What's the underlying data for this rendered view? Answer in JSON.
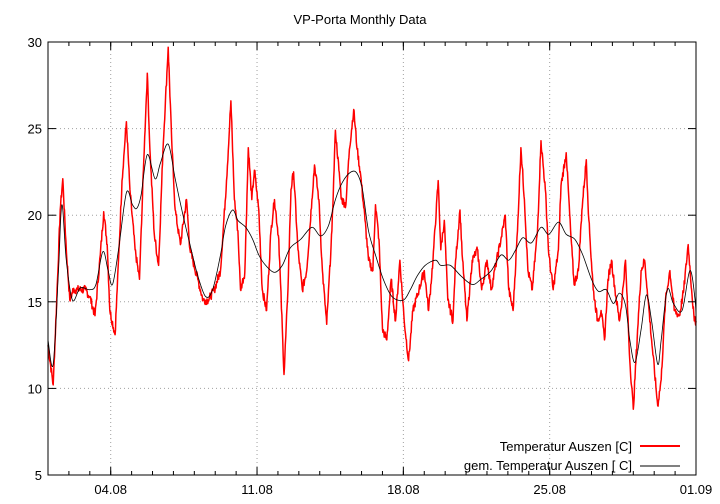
{
  "chart_data": {
    "type": "line",
    "title": "VP-Porta Monthly Data",
    "xlabel": "",
    "ylabel": "",
    "x_format": "dd.mm hh:mm",
    "xlim": [
      "01.08 00:00",
      "01.09 00:00"
    ],
    "ylim": [
      5,
      30
    ],
    "x_ticks": [
      "04.08",
      "11.08",
      "18.08",
      "25.08",
      "01.09"
    ],
    "y_ticks": [
      "5",
      "10",
      "15",
      "20",
      "25",
      "30"
    ],
    "grid": true,
    "legend_position": "bottom-right",
    "series": [
      {
        "name": "Temperatur Auszen [C]",
        "color": "#ff0000",
        "points": [
          [
            "01.08 00:00",
            12.5
          ],
          [
            "01.08 06:00",
            10.2
          ],
          [
            "01.08 10:00",
            15.1
          ],
          [
            "01.08 14:00",
            20.3
          ],
          [
            "01.08 17:00",
            22.1
          ],
          [
            "01.08 21:00",
            18.0
          ],
          [
            "02.08 01:00",
            15.1
          ],
          [
            "02.08 05:00",
            15.7
          ],
          [
            "02.08 10:00",
            15.7
          ],
          [
            "02.08 19:00",
            15.7
          ],
          [
            "03.08 00:00",
            15.3
          ],
          [
            "03.08 06:00",
            14.2
          ],
          [
            "03.08 12:00",
            17.7
          ],
          [
            "03.08 16:00",
            20.2
          ],
          [
            "03.08 20:00",
            18.3
          ],
          [
            "03.08 23:00",
            14.5
          ],
          [
            "04.08 05:00",
            13.1
          ],
          [
            "04.08 09:00",
            17.4
          ],
          [
            "04.08 13:00",
            22.0
          ],
          [
            "04.08 18:00",
            25.4
          ],
          [
            "04.08 22:00",
            21.5
          ],
          [
            "05.08 04:00",
            18.0
          ],
          [
            "05.08 09:00",
            16.3
          ],
          [
            "05.08 14:00",
            23.2
          ],
          [
            "05.08 18:00",
            28.2
          ],
          [
            "05.08 21:00",
            23.8
          ],
          [
            "06.08 02:00",
            18.9
          ],
          [
            "06.08 07:00",
            17.1
          ],
          [
            "06.08 12:00",
            23.8
          ],
          [
            "06.08 18:00",
            29.7
          ],
          [
            "06.08 22:00",
            24.3
          ],
          [
            "07.08 02:00",
            20.3
          ],
          [
            "07.08 08:00",
            18.3
          ],
          [
            "07.08 15:00",
            20.9
          ],
          [
            "07.08 19:00",
            18.0
          ],
          [
            "08.08 04:00",
            16.3
          ],
          [
            "08.08 10:00",
            15.1
          ],
          [
            "08.08 16:00",
            15.1
          ],
          [
            "08.08 23:00",
            15.7
          ],
          [
            "09.08 06:00",
            16.8
          ],
          [
            "09.08 13:00",
            22.0
          ],
          [
            "09.08 18:00",
            26.6
          ],
          [
            "09.08 22:00",
            20.9
          ],
          [
            "10.08 02:00",
            19.1
          ],
          [
            "10.08 05:00",
            15.7
          ],
          [
            "10.08 10:00",
            16.7
          ],
          [
            "10.08 14:00",
            23.9
          ],
          [
            "10.08 18:00",
            20.9
          ],
          [
            "10.08 21:00",
            22.6
          ],
          [
            "11.08 02:00",
            20.3
          ],
          [
            "11.08 06:00",
            15.7
          ],
          [
            "11.08 11:00",
            14.5
          ],
          [
            "11.08 16:00",
            19.1
          ],
          [
            "11.08 20:00",
            20.9
          ],
          [
            "12.08 01:00",
            18.6
          ],
          [
            "12.08 07:00",
            10.8
          ],
          [
            "12.08 11:00",
            15.1
          ],
          [
            "12.08 15:00",
            21.5
          ],
          [
            "12.08 18:00",
            22.5
          ],
          [
            "12.08 23:00",
            18.0
          ],
          [
            "13.08 04:00",
            15.7
          ],
          [
            "13.08 09:00",
            16.8
          ],
          [
            "13.08 15:00",
            20.9
          ],
          [
            "13.08 18:00",
            22.9
          ],
          [
            "13.08 23:00",
            20.9
          ],
          [
            "14.08 03:00",
            16.8
          ],
          [
            "14.08 08:00",
            13.7
          ],
          [
            "14.08 14:00",
            19.1
          ],
          [
            "14.08 18:00",
            24.9
          ],
          [
            "14.08 22:00",
            22.6
          ],
          [
            "15.08 01:00",
            20.9
          ],
          [
            "15.08 06:00",
            20.6
          ],
          [
            "15.08 10:00",
            23.8
          ],
          [
            "15.08 15:00",
            26.1
          ],
          [
            "15.08 19:00",
            23.8
          ],
          [
            "15.08 23:00",
            22.3
          ],
          [
            "16.08 04:00",
            19.7
          ],
          [
            "16.08 08:00",
            17.4
          ],
          [
            "16.08 13:00",
            16.8
          ],
          [
            "16.08 16:00",
            20.6
          ],
          [
            "16.08 20:00",
            18.6
          ],
          [
            "17.08 00:00",
            13.4
          ],
          [
            "17.08 05:00",
            12.8
          ],
          [
            "17.08 10:00",
            16.3
          ],
          [
            "17.08 15:00",
            13.9
          ],
          [
            "17.08 20:00",
            17.4
          ],
          [
            "18.08 01:00",
            13.9
          ],
          [
            "18.08 06:00",
            11.6
          ],
          [
            "18.08 11:00",
            14.5
          ],
          [
            "18.08 18:00",
            15.7
          ],
          [
            "19.08 00:00",
            16.8
          ],
          [
            "19.08 05:00",
            14.5
          ],
          [
            "19.08 10:00",
            17.4
          ],
          [
            "19.08 16:00",
            22.0
          ],
          [
            "19.08 19:00",
            18.0
          ],
          [
            "19.08 23:00",
            19.7
          ],
          [
            "20.08 03:00",
            15.1
          ],
          [
            "20.08 09:00",
            13.9
          ],
          [
            "20.08 12:00",
            17.4
          ],
          [
            "20.08 17:00",
            20.3
          ],
          [
            "20.08 20:00",
            17.4
          ],
          [
            "21.08 01:00",
            13.9
          ],
          [
            "21.08 07:00",
            17.4
          ],
          [
            "21.08 13:00",
            18.0
          ],
          [
            "21.08 18:00",
            15.7
          ],
          [
            "22.08 00:00",
            17.4
          ],
          [
            "22.08 05:00",
            15.7
          ],
          [
            "22.08 10:00",
            17.1
          ],
          [
            "22.08 16:00",
            18.6
          ],
          [
            "22.08 21:00",
            20.0
          ],
          [
            "23.08 01:00",
            15.7
          ],
          [
            "23.08 06:00",
            14.5
          ],
          [
            "23.08 11:00",
            19.1
          ],
          [
            "23.08 15:00",
            23.9
          ],
          [
            "23.08 19:00",
            20.9
          ],
          [
            "23.08 23:00",
            16.8
          ],
          [
            "24.08 04:00",
            15.7
          ],
          [
            "24.08 10:00",
            19.1
          ],
          [
            "24.08 14:00",
            24.3
          ],
          [
            "24.08 19:00",
            21.5
          ],
          [
            "24.08 23:00",
            17.7
          ],
          [
            "25.08 04:00",
            15.7
          ],
          [
            "25.08 10:00",
            18.0
          ],
          [
            "25.08 13:00",
            21.7
          ],
          [
            "25.08 19:00",
            23.6
          ],
          [
            "26.08 00:00",
            19.1
          ],
          [
            "26.08 04:00",
            16.0
          ],
          [
            "26.08 09:00",
            16.8
          ],
          [
            "26.08 13:00",
            20.3
          ],
          [
            "26.08 18:00",
            23.2
          ],
          [
            "26.08 21:00",
            19.7
          ],
          [
            "27.08 02:00",
            15.7
          ],
          [
            "27.08 07:00",
            13.9
          ],
          [
            "27.08 11:00",
            14.5
          ],
          [
            "27.08 15:00",
            12.8
          ],
          [
            "27.08 19:00",
            16.3
          ],
          [
            "27.08 23:00",
            17.4
          ],
          [
            "28.08 03:00",
            15.7
          ],
          [
            "28.08 08:00",
            13.9
          ],
          [
            "28.08 11:00",
            15.1
          ],
          [
            "28.08 15:00",
            17.4
          ],
          [
            "28.08 20:00",
            11.6
          ],
          [
            "29.08 00:00",
            8.8
          ],
          [
            "29.08 05:00",
            13.4
          ],
          [
            "29.08 09:00",
            16.8
          ],
          [
            "29.08 13:00",
            17.4
          ],
          [
            "29.08 16:00",
            15.7
          ],
          [
            "29.08 21:00",
            12.8
          ],
          [
            "30.08 04:00",
            9.0
          ],
          [
            "30.08 08:00",
            10.5
          ],
          [
            "30.08 13:00",
            15.1
          ],
          [
            "30.08 18:00",
            16.8
          ],
          [
            "30.08 23:00",
            14.5
          ],
          [
            "31.08 05:00",
            14.2
          ],
          [
            "31.08 10:00",
            15.7
          ],
          [
            "31.08 15:00",
            18.3
          ],
          [
            "31.08 19:00",
            15.7
          ],
          [
            "31.08 22:00",
            13.9
          ],
          [
            "01.09 00:00",
            13.9
          ]
        ]
      },
      {
        "name": "gem. Temperatur Auszen [ C]",
        "color": "#000000",
        "points": [
          [
            "01.08 00:00",
            12.8
          ],
          [
            "01.08 06:00",
            11.4
          ],
          [
            "01.08 12:00",
            16.8
          ],
          [
            "01.08 16:00",
            20.6
          ],
          [
            "01.08 21:00",
            17.4
          ],
          [
            "02.08 04:00",
            15.1
          ],
          [
            "02.08 13:00",
            15.8
          ],
          [
            "03.08 00:00",
            15.7
          ],
          [
            "03.08 07:00",
            16.0
          ],
          [
            "03.08 15:00",
            17.9
          ],
          [
            "03.08 21:00",
            16.8
          ],
          [
            "04.08 02:00",
            16.0
          ],
          [
            "04.08 09:00",
            18.0
          ],
          [
            "04.08 18:00",
            21.3
          ],
          [
            "05.08 01:00",
            20.6
          ],
          [
            "05.08 06:00",
            20.4
          ],
          [
            "05.08 11:00",
            21.2
          ],
          [
            "05.08 18:00",
            23.5
          ],
          [
            "06.08 03:00",
            22.1
          ],
          [
            "06.08 09:00",
            23.0
          ],
          [
            "06.08 18:00",
            24.1
          ],
          [
            "07.08 02:00",
            22.1
          ],
          [
            "07.08 11:00",
            20.0
          ],
          [
            "07.08 19:00",
            18.3
          ],
          [
            "08.08 04:00",
            16.5
          ],
          [
            "08.08 13:00",
            15.3
          ],
          [
            "08.08 21:00",
            15.7
          ],
          [
            "09.08 06:00",
            17.7
          ],
          [
            "09.08 12:00",
            19.4
          ],
          [
            "09.08 20:00",
            20.3
          ],
          [
            "10.08 02:00",
            19.7
          ],
          [
            "10.08 11:00",
            19.3
          ],
          [
            "10.08 19:00",
            18.6
          ],
          [
            "11.08 02:00",
            17.7
          ],
          [
            "11.08 10:00",
            17.1
          ],
          [
            "11.08 20:00",
            16.7
          ],
          [
            "12.08 05:00",
            17.1
          ],
          [
            "12.08 14:00",
            18.1
          ],
          [
            "13.08 02:00",
            18.6
          ],
          [
            "13.08 15:00",
            19.3
          ],
          [
            "14.08 01:00",
            18.8
          ],
          [
            "14.08 10:00",
            19.4
          ],
          [
            "14.08 18:00",
            20.9
          ],
          [
            "15.08 02:00",
            21.9
          ],
          [
            "15.08 12:00",
            22.5
          ],
          [
            "15.08 19:00",
            22.4
          ],
          [
            "16.08 01:00",
            21.5
          ],
          [
            "16.08 08:00",
            19.1
          ],
          [
            "16.08 16:00",
            17.7
          ],
          [
            "17.08 01:00",
            16.3
          ],
          [
            "17.08 11:00",
            15.3
          ],
          [
            "18.08 00:00",
            15.1
          ],
          [
            "18.08 08:00",
            15.7
          ],
          [
            "18.08 16:00",
            16.5
          ],
          [
            "19.08 01:00",
            17.1
          ],
          [
            "19.08 13:00",
            17.4
          ],
          [
            "19.08 19:00",
            17.1
          ],
          [
            "20.08 06:00",
            17.1
          ],
          [
            "20.08 18:00",
            16.5
          ],
          [
            "21.08 07:00",
            16.0
          ],
          [
            "21.08 17:00",
            16.3
          ],
          [
            "22.08 05:00",
            16.8
          ],
          [
            "22.08 16:00",
            17.7
          ],
          [
            "23.08 01:00",
            17.4
          ],
          [
            "23.08 09:00",
            18.0
          ],
          [
            "23.08 17:00",
            18.7
          ],
          [
            "24.08 03:00",
            18.4
          ],
          [
            "24.08 14:00",
            19.3
          ],
          [
            "24.08 23:00",
            18.9
          ],
          [
            "25.08 10:00",
            19.6
          ],
          [
            "25.08 19:00",
            18.9
          ],
          [
            "26.08 05:00",
            18.6
          ],
          [
            "26.08 14:00",
            17.7
          ],
          [
            "27.08 00:00",
            16.3
          ],
          [
            "27.08 08:00",
            15.6
          ],
          [
            "27.08 17:00",
            15.7
          ],
          [
            "28.08 01:00",
            14.9
          ],
          [
            "28.08 08:00",
            15.5
          ],
          [
            "28.08 15:00",
            14.8
          ],
          [
            "28.08 20:00",
            12.8
          ],
          [
            "29.08 02:00",
            11.5
          ],
          [
            "29.08 09:00",
            13.4
          ],
          [
            "29.08 15:00",
            15.4
          ],
          [
            "29.08 21:00",
            13.9
          ],
          [
            "30.08 04:00",
            11.4
          ],
          [
            "30.08 08:00",
            12.8
          ],
          [
            "30.08 15:00",
            15.7
          ],
          [
            "30.08 22:00",
            14.9
          ],
          [
            "31.08 08:00",
            14.5
          ],
          [
            "31.08 17:00",
            16.8
          ],
          [
            "31.08 23:00",
            15.1
          ],
          [
            "01.09 00:00",
            13.9
          ]
        ]
      }
    ]
  }
}
